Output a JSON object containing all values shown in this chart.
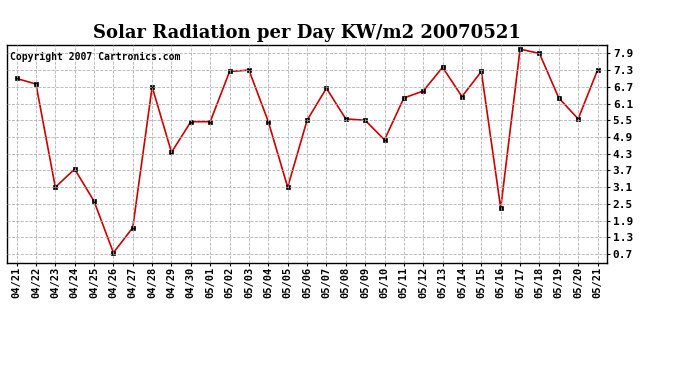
{
  "title": "Solar Radiation per Day KW/m2 20070521",
  "copyright": "Copyright 2007 Cartronics.com",
  "labels": [
    "04/21",
    "04/22",
    "04/23",
    "04/24",
    "04/25",
    "04/26",
    "04/27",
    "04/28",
    "04/29",
    "04/30",
    "05/01",
    "05/02",
    "05/03",
    "05/04",
    "05/05",
    "05/06",
    "05/07",
    "05/08",
    "05/09",
    "05/10",
    "05/11",
    "05/12",
    "05/13",
    "05/14",
    "05/15",
    "05/16",
    "05/17",
    "05/18",
    "05/19",
    "05/20",
    "05/21"
  ],
  "values": [
    7.0,
    6.8,
    3.1,
    3.75,
    2.6,
    0.75,
    1.65,
    6.7,
    4.35,
    5.45,
    5.45,
    7.25,
    7.3,
    5.45,
    3.1,
    5.5,
    6.65,
    5.55,
    5.5,
    4.8,
    6.3,
    6.55,
    7.4,
    6.35,
    7.25,
    2.35,
    8.05,
    7.9,
    6.3,
    5.55,
    7.3
  ],
  "yticks": [
    0.7,
    1.3,
    1.9,
    2.5,
    3.1,
    3.7,
    4.3,
    4.9,
    5.5,
    6.1,
    6.7,
    7.3,
    7.9
  ],
  "ylim": [
    0.4,
    8.2
  ],
  "xlim": [
    -0.5,
    30.5
  ],
  "line_color": "#cc0000",
  "marker_color": "#000000",
  "bg_color": "#ffffff",
  "grid_color": "#aaaaaa",
  "title_fontsize": 13,
  "copyright_fontsize": 7,
  "tick_fontsize": 7.5
}
